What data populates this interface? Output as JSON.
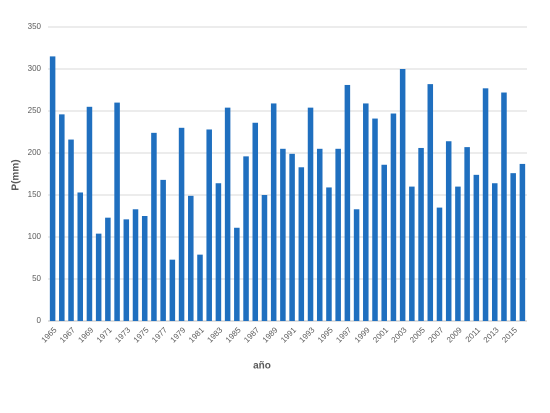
{
  "chart_data": {
    "type": "bar",
    "x_label": "año",
    "y_label": "P(mm)",
    "categories": [
      "1965",
      null,
      "1967",
      null,
      "1969",
      null,
      "1971",
      null,
      "1973",
      null,
      "1975",
      null,
      "1977",
      null,
      "1979",
      null,
      "1981",
      null,
      "1983",
      null,
      "1985",
      null,
      "1987",
      null,
      "1989",
      null,
      "1991",
      null,
      "1993",
      null,
      "1995",
      null,
      "1997",
      null,
      "1999",
      null,
      "2001",
      null,
      "2003",
      null,
      "2005",
      null,
      "2007",
      null,
      "2009",
      null,
      "2011",
      null,
      "2013",
      null,
      "2015",
      null
    ],
    "values": [
      315,
      246,
      216,
      153,
      255,
      104,
      123,
      260,
      121,
      133,
      125,
      224,
      168,
      73,
      230,
      149,
      79,
      228,
      164,
      254,
      111,
      196,
      236,
      150,
      259,
      205,
      199,
      183,
      254,
      205,
      159,
      205,
      281,
      133,
      259,
      241,
      186,
      247,
      300,
      160,
      206,
      282,
      135,
      214,
      160,
      207,
      174,
      277,
      164,
      272,
      176,
      187
    ],
    "color": "#1f6fbf",
    "ylim": [
      0,
      350
    ],
    "yticks": [
      0,
      50,
      100,
      150,
      200,
      250,
      300,
      350
    ],
    "grid": true
  }
}
